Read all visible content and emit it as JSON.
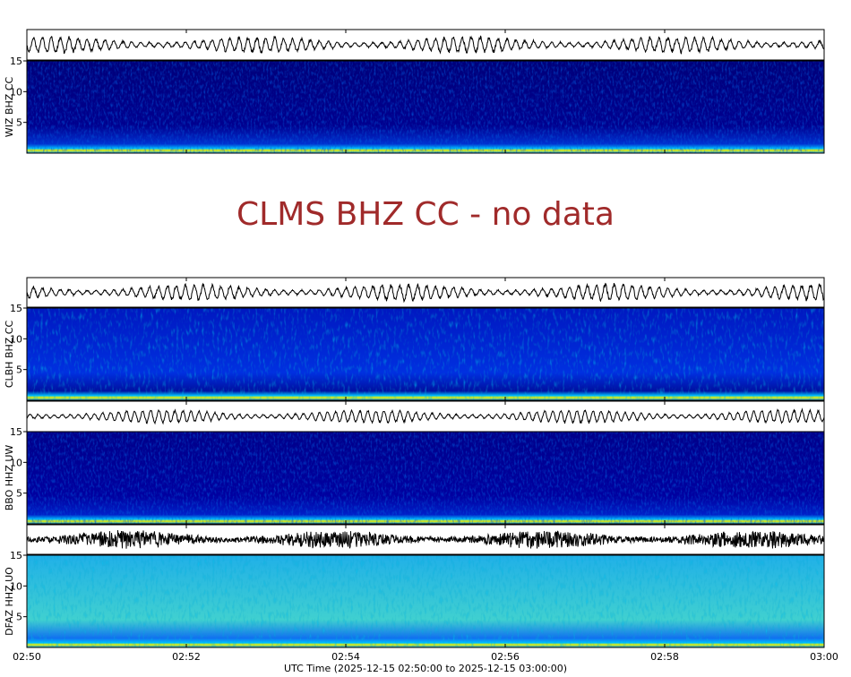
{
  "panels": [
    {
      "station": "WIZ BHZ CC",
      "ylim": [
        0,
        15
      ],
      "yticks": [
        5,
        10,
        15
      ]
    },
    {
      "station": "CLMS BHZ CC - no data"
    },
    {
      "station": "CLBH BHZ CC",
      "ylim": [
        0,
        15
      ],
      "yticks": [
        5,
        10,
        15
      ]
    },
    {
      "station": "BBO HHZ UW",
      "ylim": [
        0,
        15
      ],
      "yticks": [
        5,
        10,
        15
      ]
    },
    {
      "station": "DFAZ HHZ UO",
      "ylim": [
        0,
        15
      ],
      "yticks": [
        5,
        10,
        15
      ]
    }
  ],
  "x_axis": {
    "ticks": [
      "02:50",
      "02:52",
      "02:54",
      "02:56",
      "02:58",
      "03:00"
    ],
    "label": "UTC Time (2025-12-15 02:50:00 to 2025-12-15 03:00:00)"
  }
}
